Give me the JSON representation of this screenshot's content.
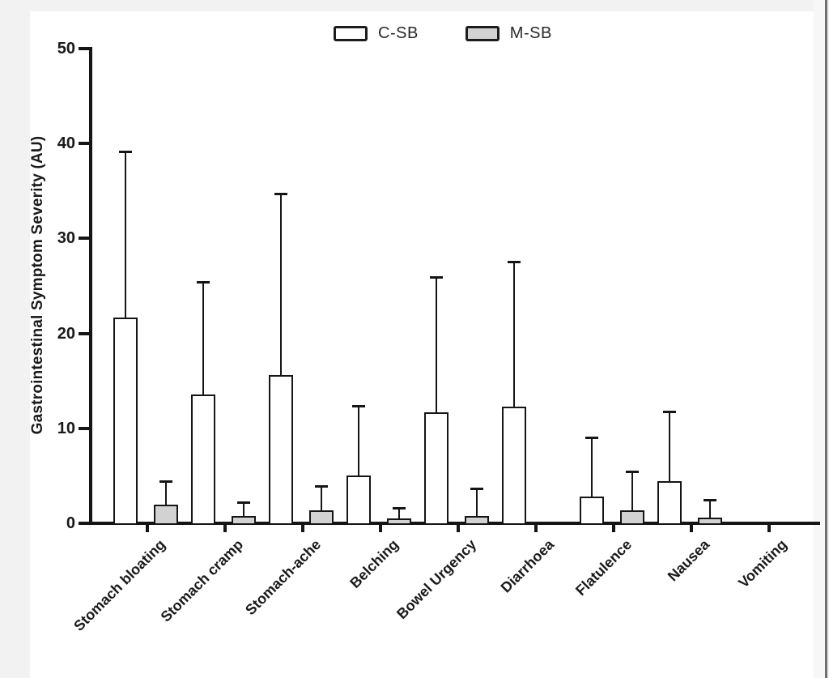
{
  "chart_data": {
    "type": "bar",
    "title": "",
    "xlabel": "",
    "ylabel": "Gastrointestinal Symptom Severity (AU)",
    "ylim": [
      0,
      50
    ],
    "yticks": [
      0,
      10,
      20,
      30,
      40,
      50
    ],
    "grid": false,
    "legend_position": "top-center",
    "error_bars": "upper-only",
    "bar_outline_color": "#151515",
    "categories": [
      "Stomach bloating",
      "Stomach cramp",
      "Stomach-ache",
      "Belching",
      "Bowel Urgency",
      "Diarrhoea",
      "Flatulence",
      "Nausea",
      "Vomiting"
    ],
    "series": [
      {
        "name": "C-SB",
        "fill": "#ffffff",
        "values": [
          21.7,
          13.6,
          15.6,
          5.0,
          11.7,
          12.3,
          2.8,
          4.4,
          0
        ],
        "errors": [
          17.4,
          11.8,
          19.1,
          7.3,
          14.2,
          15.2,
          6.2,
          7.3,
          0
        ]
      },
      {
        "name": "M-SB",
        "fill": "#d2d2d2",
        "values": [
          2.0,
          0.8,
          1.4,
          0.5,
          0.8,
          0,
          1.4,
          0.6,
          0
        ],
        "errors": [
          2.4,
          1.4,
          2.5,
          1.1,
          2.8,
          0,
          4.0,
          1.8,
          0
        ]
      }
    ]
  }
}
